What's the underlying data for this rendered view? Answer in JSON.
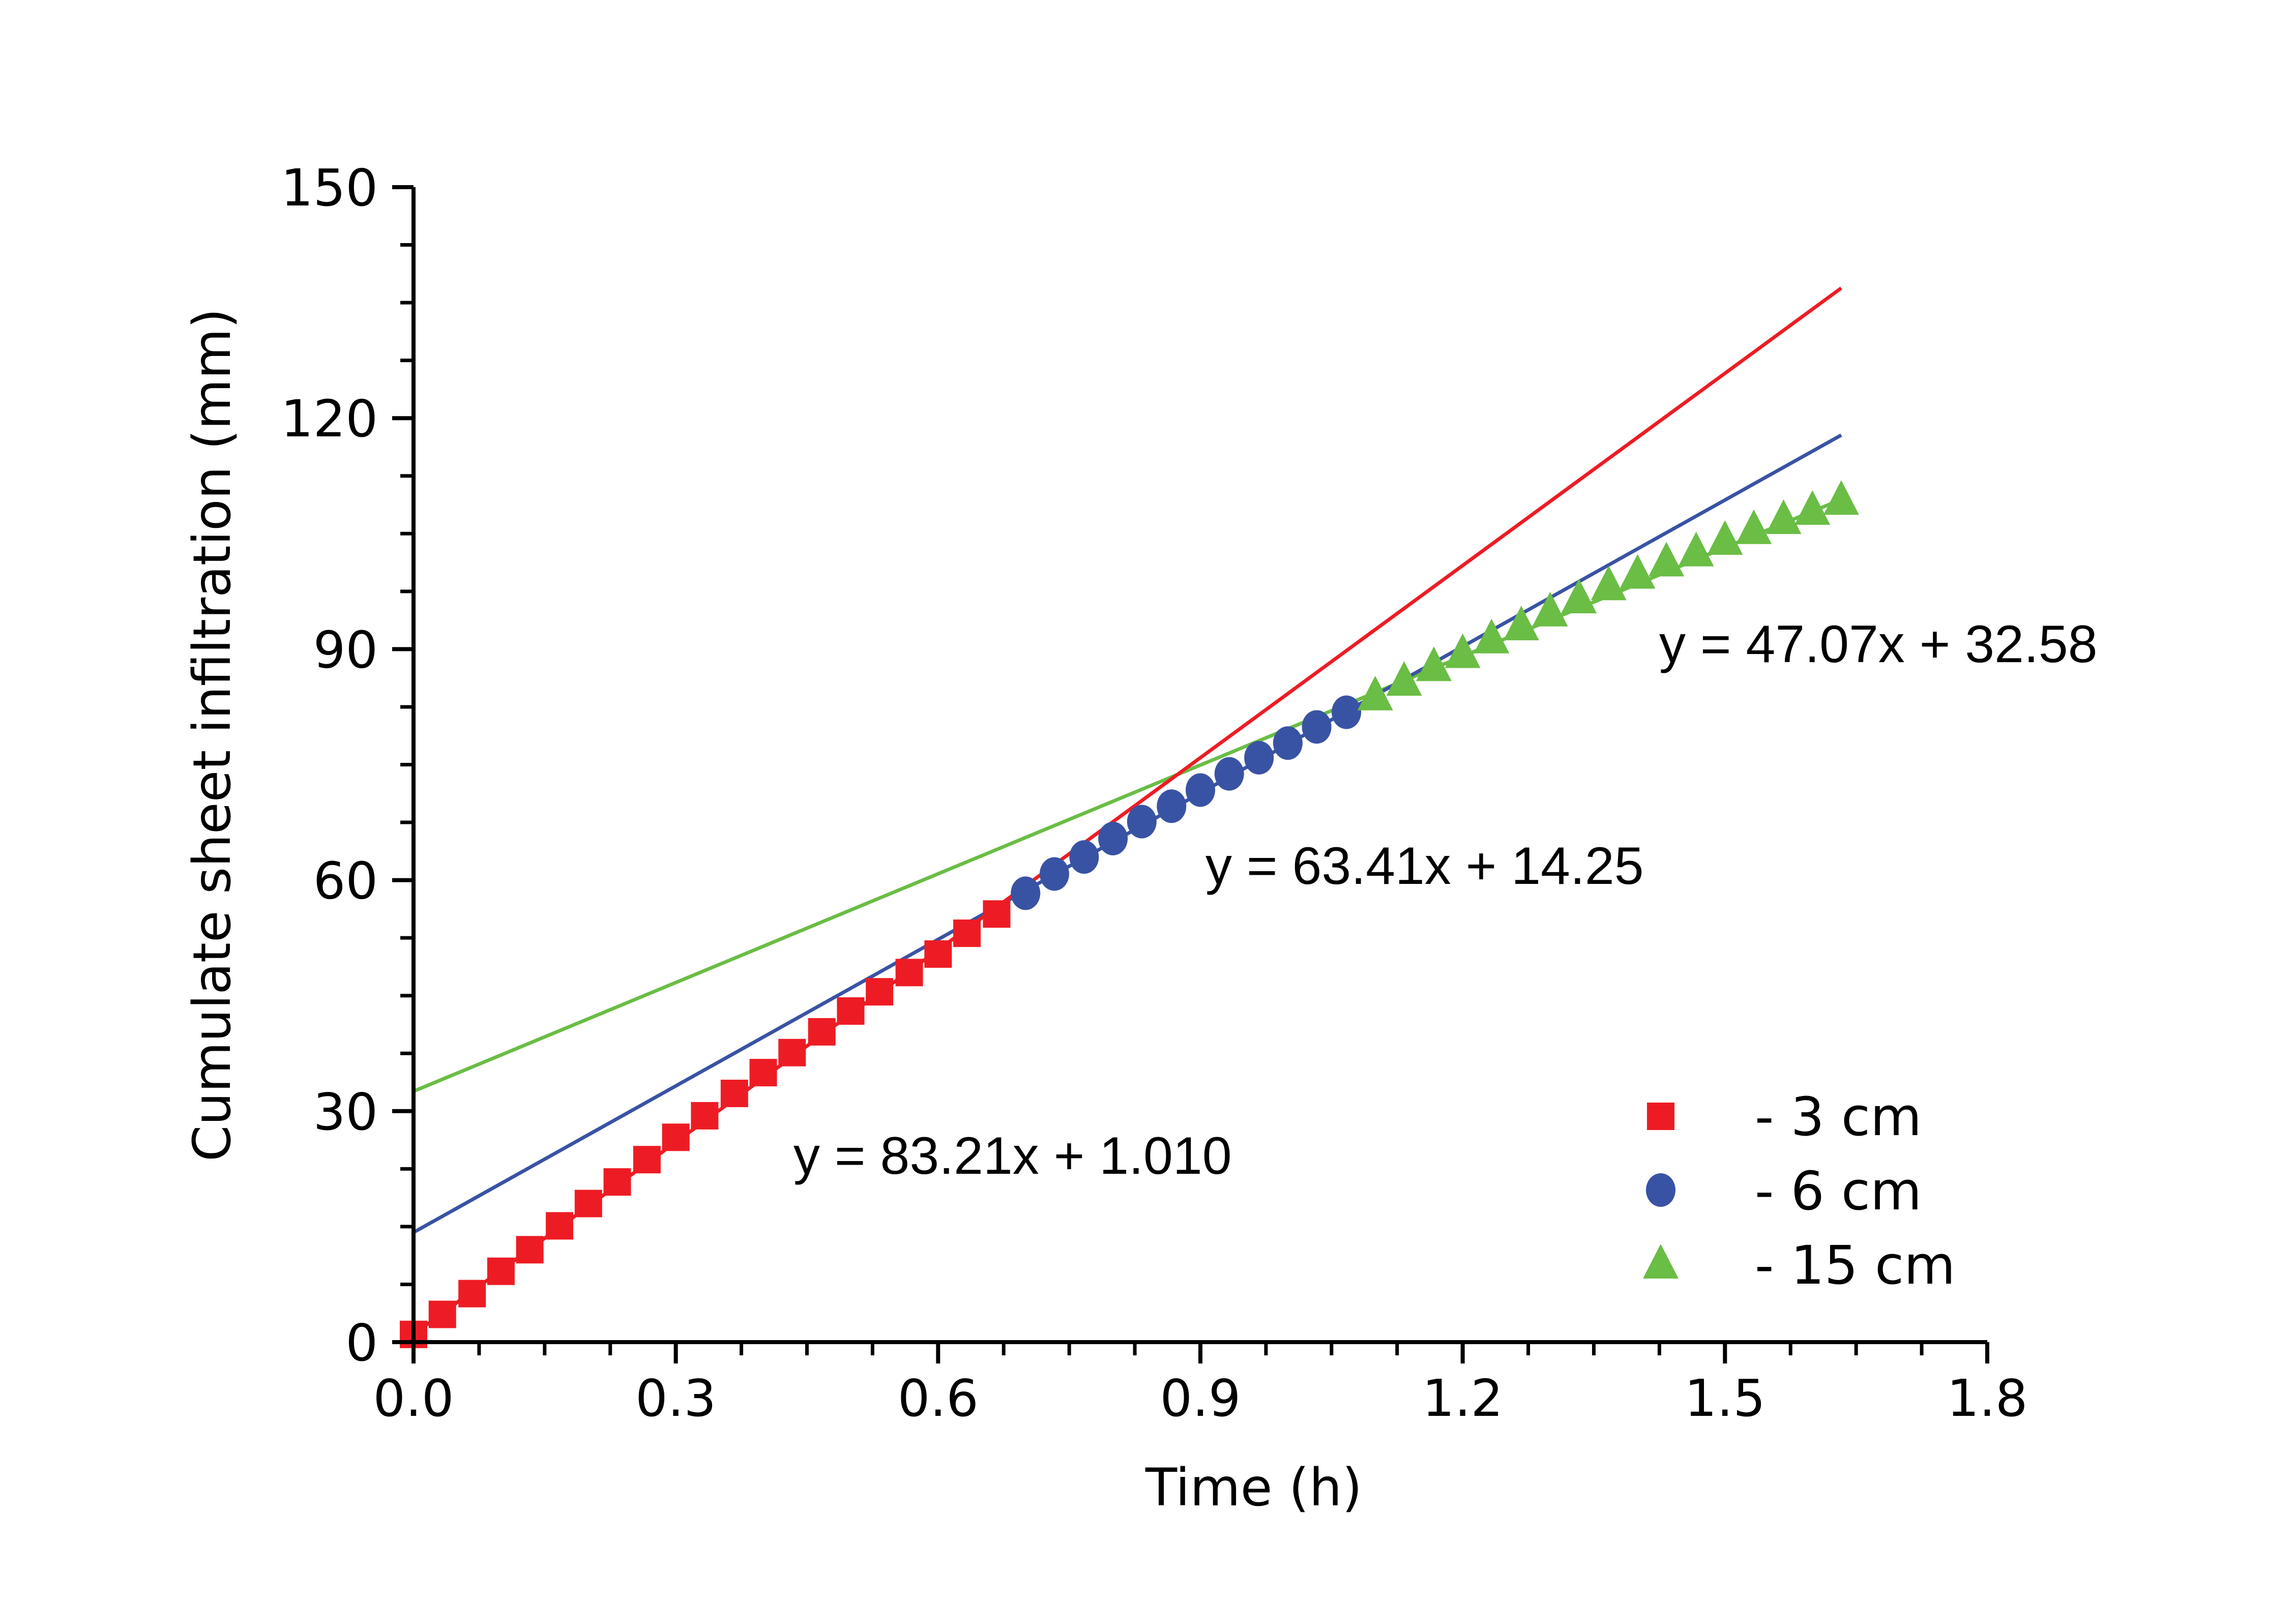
{
  "chart_data": {
    "type": "scatter",
    "title": "",
    "xlabel": "Time (h)",
    "ylabel": "Cumulate sheet infiltration (mm)",
    "xlim": [
      0,
      1.8
    ],
    "ylim": [
      0,
      150
    ],
    "xticks": [
      "0.0",
      "0.3",
      "0.6",
      "0.9",
      "1.2",
      "1.5",
      "1.8"
    ],
    "yticks": [
      "0",
      "30",
      "60",
      "90",
      "120",
      "150"
    ],
    "grid": false,
    "legend_position": "bottom-right",
    "series": [
      {
        "name": "- 3 cm",
        "marker": "square",
        "color": "#ed1c24",
        "x": [
          0,
          0.033,
          0.067,
          0.1,
          0.133,
          0.167,
          0.2,
          0.233,
          0.267,
          0.3,
          0.333,
          0.367,
          0.4,
          0.433,
          0.467,
          0.5,
          0.533,
          0.567,
          0.6,
          0.633,
          0.667
        ],
        "y": [
          1.0,
          3.6,
          6.3,
          9.2,
          12.0,
          15.1,
          18.0,
          20.8,
          23.7,
          26.6,
          29.4,
          32.3,
          35.0,
          37.6,
          40.3,
          43.0,
          45.5,
          48.0,
          50.4,
          53.1,
          55.6
        ],
        "fit": {
          "slope": 83.21,
          "intercept": 1.01,
          "label": "y = 83.21x + 1.010",
          "x_range": [
            0,
            1.633
          ]
        }
      },
      {
        "name": "- 6 cm",
        "marker": "circle",
        "color": "#3953a4",
        "x": [
          0.7,
          0.733,
          0.767,
          0.8,
          0.833,
          0.867,
          0.9,
          0.933,
          0.967,
          1.0,
          1.033,
          1.067
        ],
        "y": [
          58.3,
          60.8,
          63.0,
          65.4,
          67.6,
          69.6,
          71.7,
          73.8,
          75.9,
          77.8,
          79.9,
          81.8
        ],
        "fit": {
          "slope": 63.41,
          "intercept": 14.25,
          "label": "y = 63.41x + 14.25",
          "x_range": [
            0,
            1.633
          ]
        }
      },
      {
        "name": "- 15 cm",
        "marker": "triangle",
        "color": "#6abd45",
        "x": [
          1.1,
          1.133,
          1.167,
          1.2,
          1.233,
          1.267,
          1.3,
          1.333,
          1.367,
          1.4,
          1.433,
          1.467,
          1.5,
          1.533,
          1.567,
          1.6,
          1.633
        ],
        "y": [
          83.9,
          85.8,
          87.7,
          89.4,
          91.3,
          93.0,
          94.8,
          96.5,
          98.2,
          99.7,
          101.3,
          102.6,
          104.1,
          105.5,
          106.8,
          108.0,
          109.3
        ],
        "fit": {
          "slope": 47.07,
          "intercept": 32.58,
          "label": "y = 47.07x + 32.58",
          "x_range": [
            0,
            1.633
          ]
        }
      }
    ]
  }
}
